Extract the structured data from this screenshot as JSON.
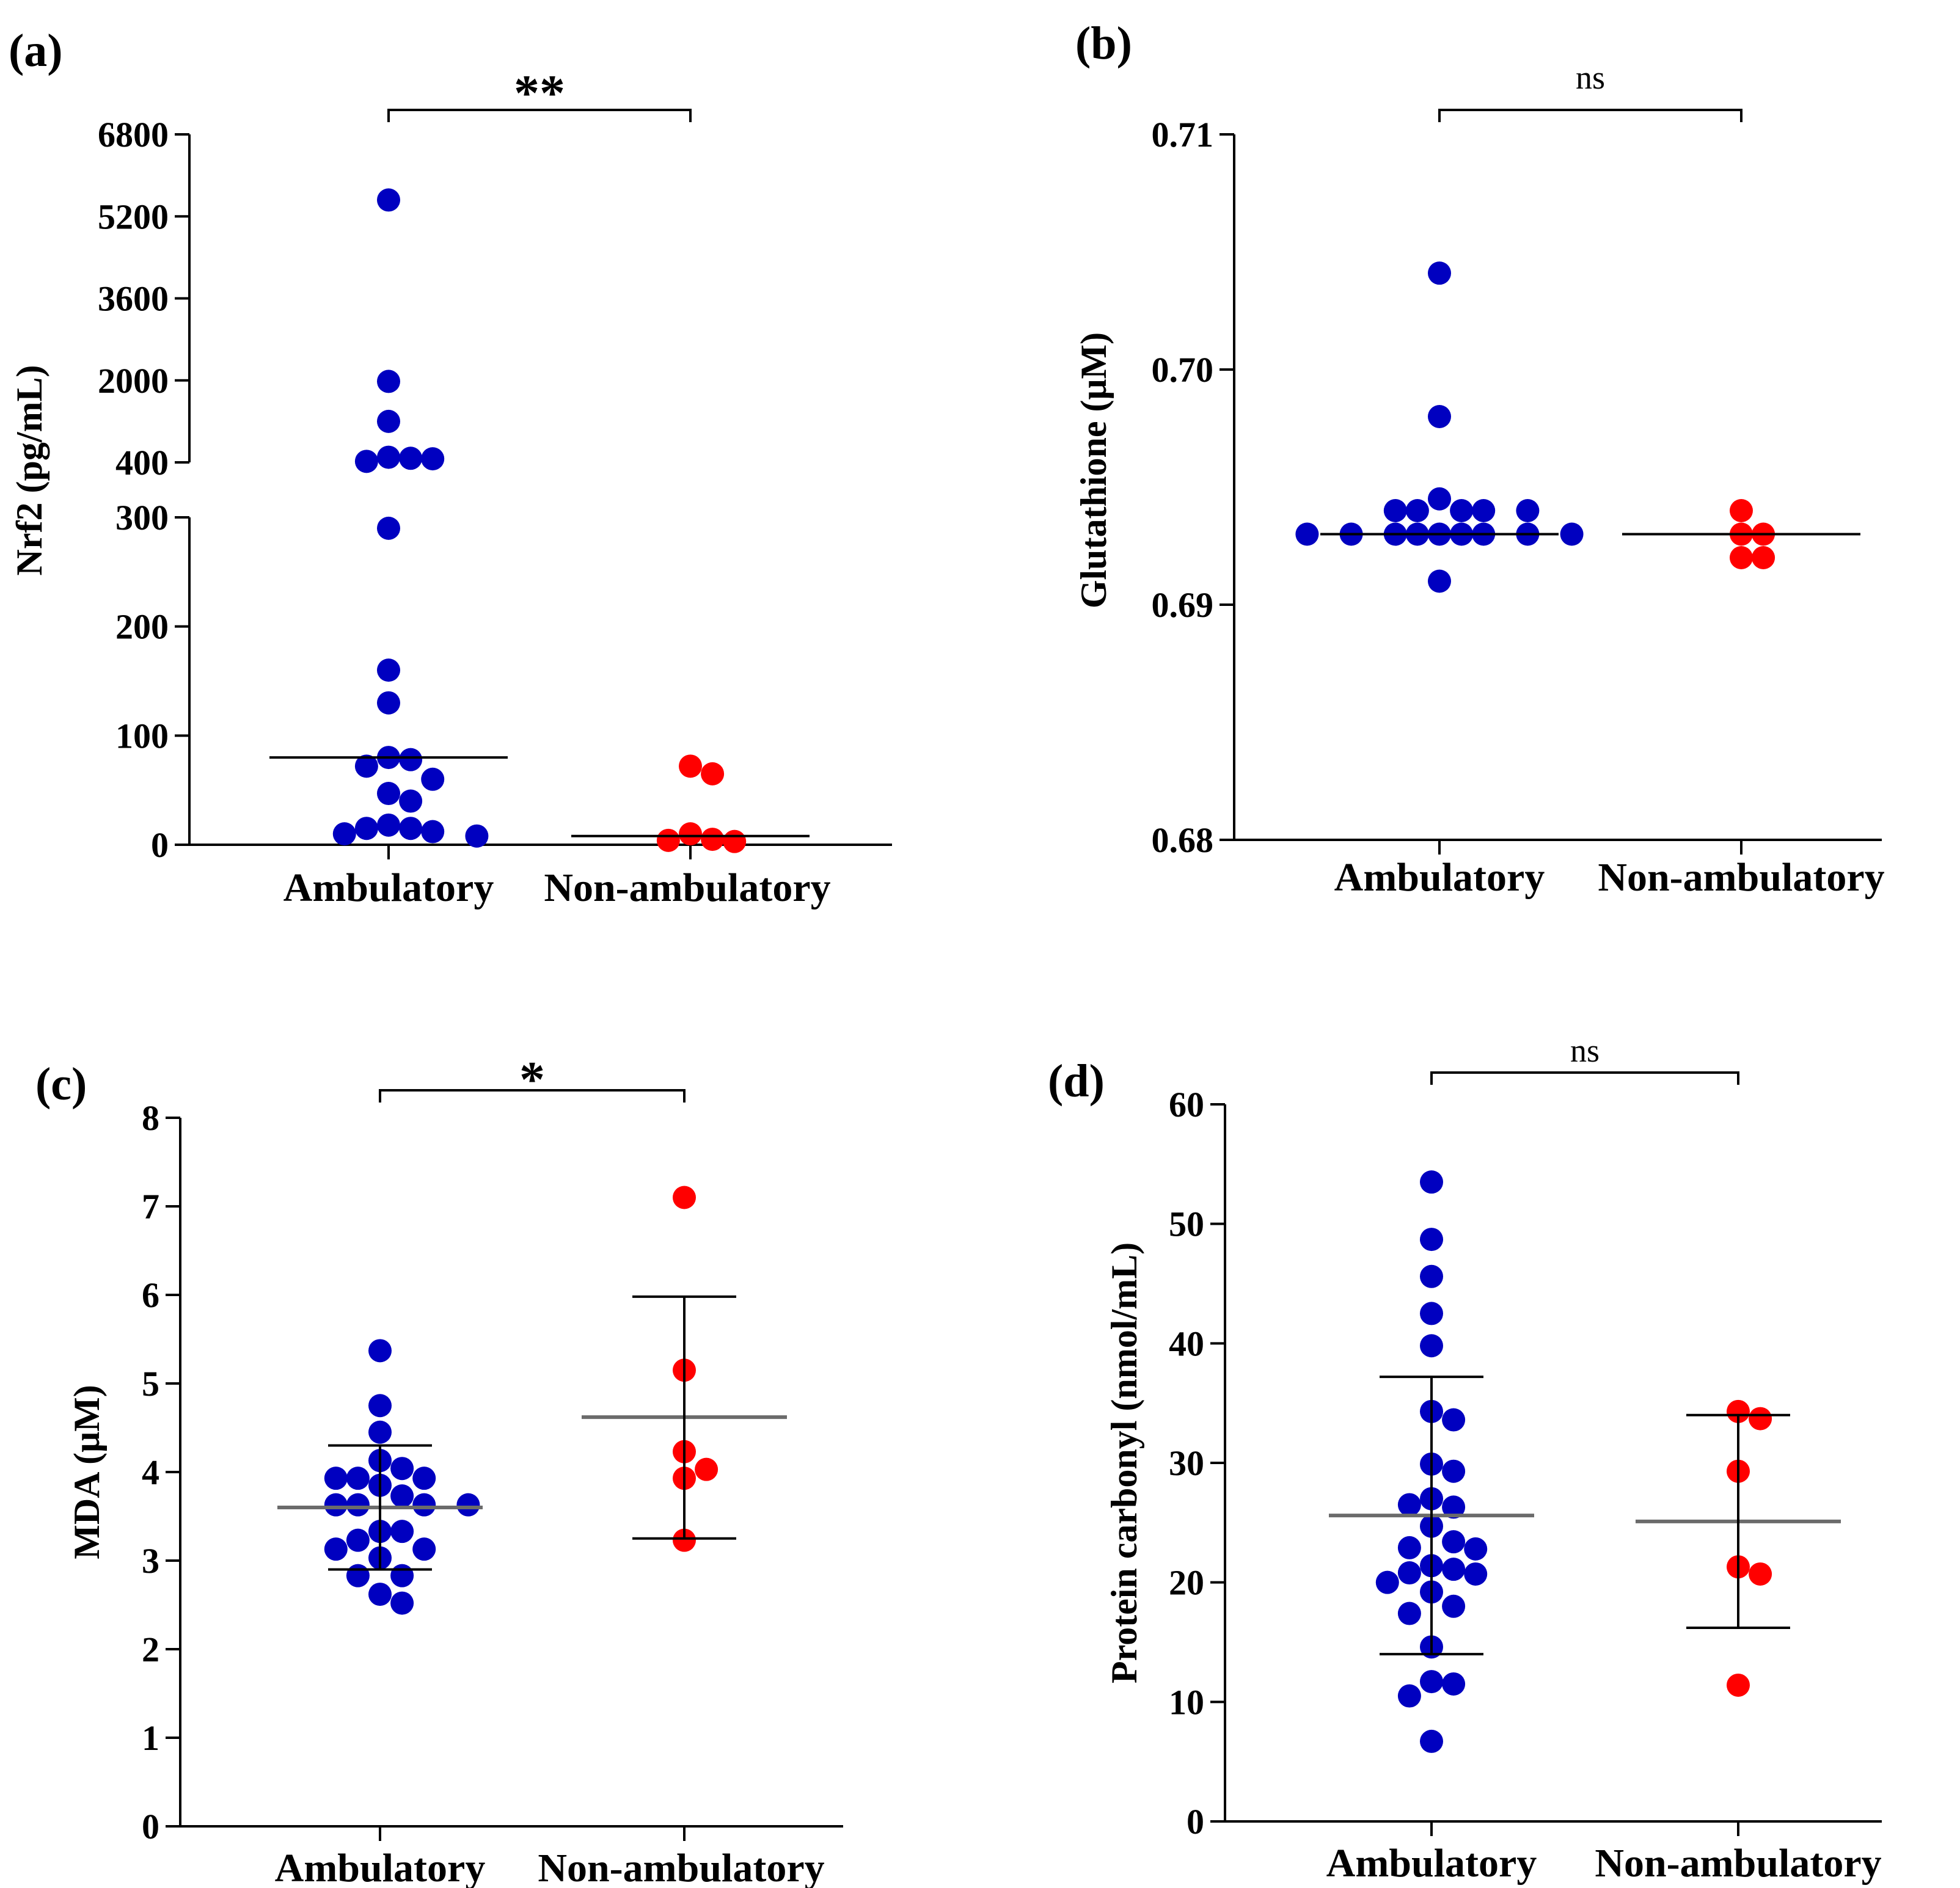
{
  "chart_data": [
    {
      "panel": "(a)",
      "type": "scatter",
      "ylabel": "Nrf2 (pg/mL)",
      "categories": [
        "Ambulatory",
        "Non-ambulatory"
      ],
      "axis_break": {
        "lower_range": [
          0,
          300
        ],
        "upper_range": [
          400,
          6800
        ]
      },
      "yticks_lower": [
        "0",
        "100",
        "200",
        "300"
      ],
      "yticks_upper": [
        "400",
        "2000",
        "3600",
        "5200",
        "6800"
      ],
      "significance": "**",
      "series": [
        {
          "name": "Ambulatory",
          "color": "#0000c0",
          "values": [
            5520,
            1980,
            1200,
            500,
            480,
            420,
            470,
            290,
            160,
            130,
            80,
            78,
            72,
            60,
            47,
            40,
            18,
            15,
            15,
            12,
            10,
            8
          ]
        },
        {
          "name": "Non-ambulatory",
          "color": "#ff0000",
          "values": [
            72,
            65,
            10,
            5,
            4,
            3
          ]
        }
      ],
      "medians": [
        80,
        8
      ]
    },
    {
      "panel": "(b)",
      "type": "scatter",
      "ylabel": "Glutathione (μM)",
      "categories": [
        "Ambulatory",
        "Non-ambulatory"
      ],
      "ylim": [
        0.68,
        0.71
      ],
      "yticks": [
        "0.68",
        "0.69",
        "0.70",
        "0.71"
      ],
      "significance": "ns",
      "series": [
        {
          "name": "Ambulatory",
          "color": "#0000c0",
          "values": [
            0.7041,
            0.698,
            0.6945,
            0.694,
            0.694,
            0.694,
            0.694,
            0.694,
            0.693,
            0.693,
            0.693,
            0.693,
            0.693,
            0.693,
            0.693,
            0.693,
            0.693,
            0.691
          ]
        },
        {
          "name": "Non-ambulatory",
          "color": "#ff0000",
          "values": [
            0.694,
            0.693,
            0.693,
            0.692,
            0.692
          ]
        }
      ],
      "medians": [
        0.693,
        0.693
      ]
    },
    {
      "panel": "(c)",
      "type": "scatter",
      "ylabel": "MDA (μM)",
      "categories": [
        "Ambulatory",
        "Non-ambulatory"
      ],
      "ylim": [
        0,
        8
      ],
      "yticks": [
        "0",
        "1",
        "2",
        "3",
        "4",
        "5",
        "6",
        "7",
        "8"
      ],
      "significance": "*",
      "series": [
        {
          "name": "Ambulatory",
          "color": "#0000c0",
          "values": [
            5.37,
            4.75,
            4.45,
            4.13,
            4.04,
            3.93,
            3.93,
            3.93,
            3.85,
            3.73,
            3.63,
            3.63,
            3.63,
            3.63,
            3.33,
            3.33,
            3.23,
            3.13,
            3.13,
            3.03,
            2.83,
            2.83,
            2.62,
            2.52
          ]
        },
        {
          "name": "Non-ambulatory",
          "color": "#ff0000",
          "values": [
            7.1,
            5.15,
            4.23,
            4.03,
            3.93,
            3.23
          ]
        }
      ],
      "means": [
        3.6,
        4.62
      ],
      "sd": [
        [
          2.9,
          4.3
        ],
        [
          3.25,
          5.98
        ]
      ]
    },
    {
      "panel": "(d)",
      "type": "scatter",
      "ylabel": "Protein carbonyl (nmol/mL)",
      "categories": [
        "Ambulatory",
        "Non-ambulatory"
      ],
      "ylim": [
        0,
        60
      ],
      "yticks": [
        "0",
        "10",
        "20",
        "30",
        "40",
        "50",
        "60"
      ],
      "significance": "ns",
      "series": [
        {
          "name": "Ambulatory",
          "color": "#0000c0",
          "values": [
            53.5,
            48.7,
            45.6,
            42.5,
            39.8,
            34.3,
            33.6,
            29.9,
            29.3,
            27.0,
            26.3,
            26.5,
            24.7,
            23.4,
            22.9,
            22.8,
            21.4,
            21.1,
            20.8,
            20.7,
            20.0,
            19.2,
            18.0,
            17.4,
            14.6,
            11.7,
            11.5,
            10.5,
            6.7
          ]
        },
        {
          "name": "Non-ambulatory",
          "color": "#ff0000",
          "values": [
            34.3,
            33.7,
            29.3,
            21.3,
            20.7,
            11.4
          ]
        }
      ],
      "means": [
        25.6,
        25.1
      ],
      "sd": [
        [
          14.0,
          37.2
        ],
        [
          16.2,
          34.0
        ]
      ]
    }
  ]
}
